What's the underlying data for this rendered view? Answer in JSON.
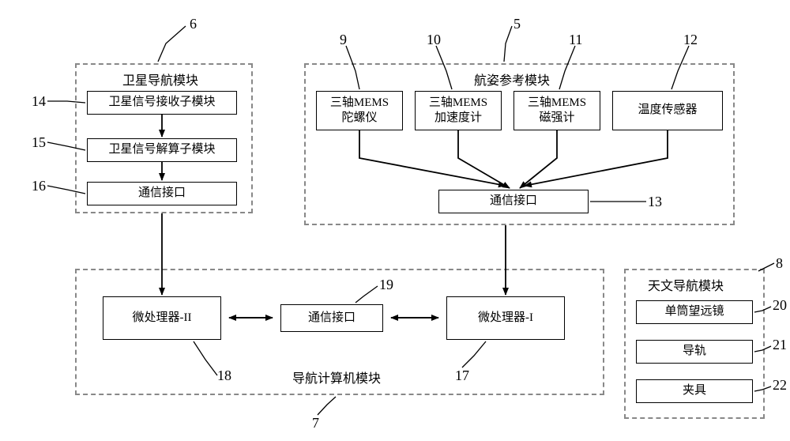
{
  "modules": {
    "sat_nav": {
      "title": "卫星导航模块",
      "ref": "6"
    },
    "attitude": {
      "title": "航姿参考模块",
      "ref": "5"
    },
    "nav_comp": {
      "title": "导航计算机模块",
      "ref": "7"
    },
    "astro": {
      "title": "天文导航模块",
      "ref": "8"
    }
  },
  "boxes": {
    "sat_recv": {
      "label": "卫星信号接收子模块",
      "ref": "14"
    },
    "sat_solve": {
      "label": "卫星信号解算子模块",
      "ref": "15"
    },
    "sat_comm": {
      "label": "通信接口",
      "ref": "16"
    },
    "gyro": {
      "label": "三轴MEMS\n陀螺仪",
      "ref": "9"
    },
    "accel": {
      "label": "三轴MEMS\n加速度计",
      "ref": "10"
    },
    "mag": {
      "label": "三轴MEMS\n磁强计",
      "ref": "11"
    },
    "temp": {
      "label": "温度传感器",
      "ref": "12"
    },
    "att_comm": {
      "label": "通信接口",
      "ref": "13"
    },
    "mpu2": {
      "label": "微处理器-II",
      "ref": "18"
    },
    "nav_comm": {
      "label": "通信接口",
      "ref": "19"
    },
    "mpu1": {
      "label": "微处理器-I",
      "ref": "17"
    },
    "telescope": {
      "label": "单筒望远镜",
      "ref": "20"
    },
    "rail": {
      "label": "导轨",
      "ref": "21"
    },
    "clamp": {
      "label": "夹具",
      "ref": "22"
    }
  },
  "colors": {
    "line": "#000000",
    "dash": "#888888",
    "bg": "#ffffff"
  }
}
